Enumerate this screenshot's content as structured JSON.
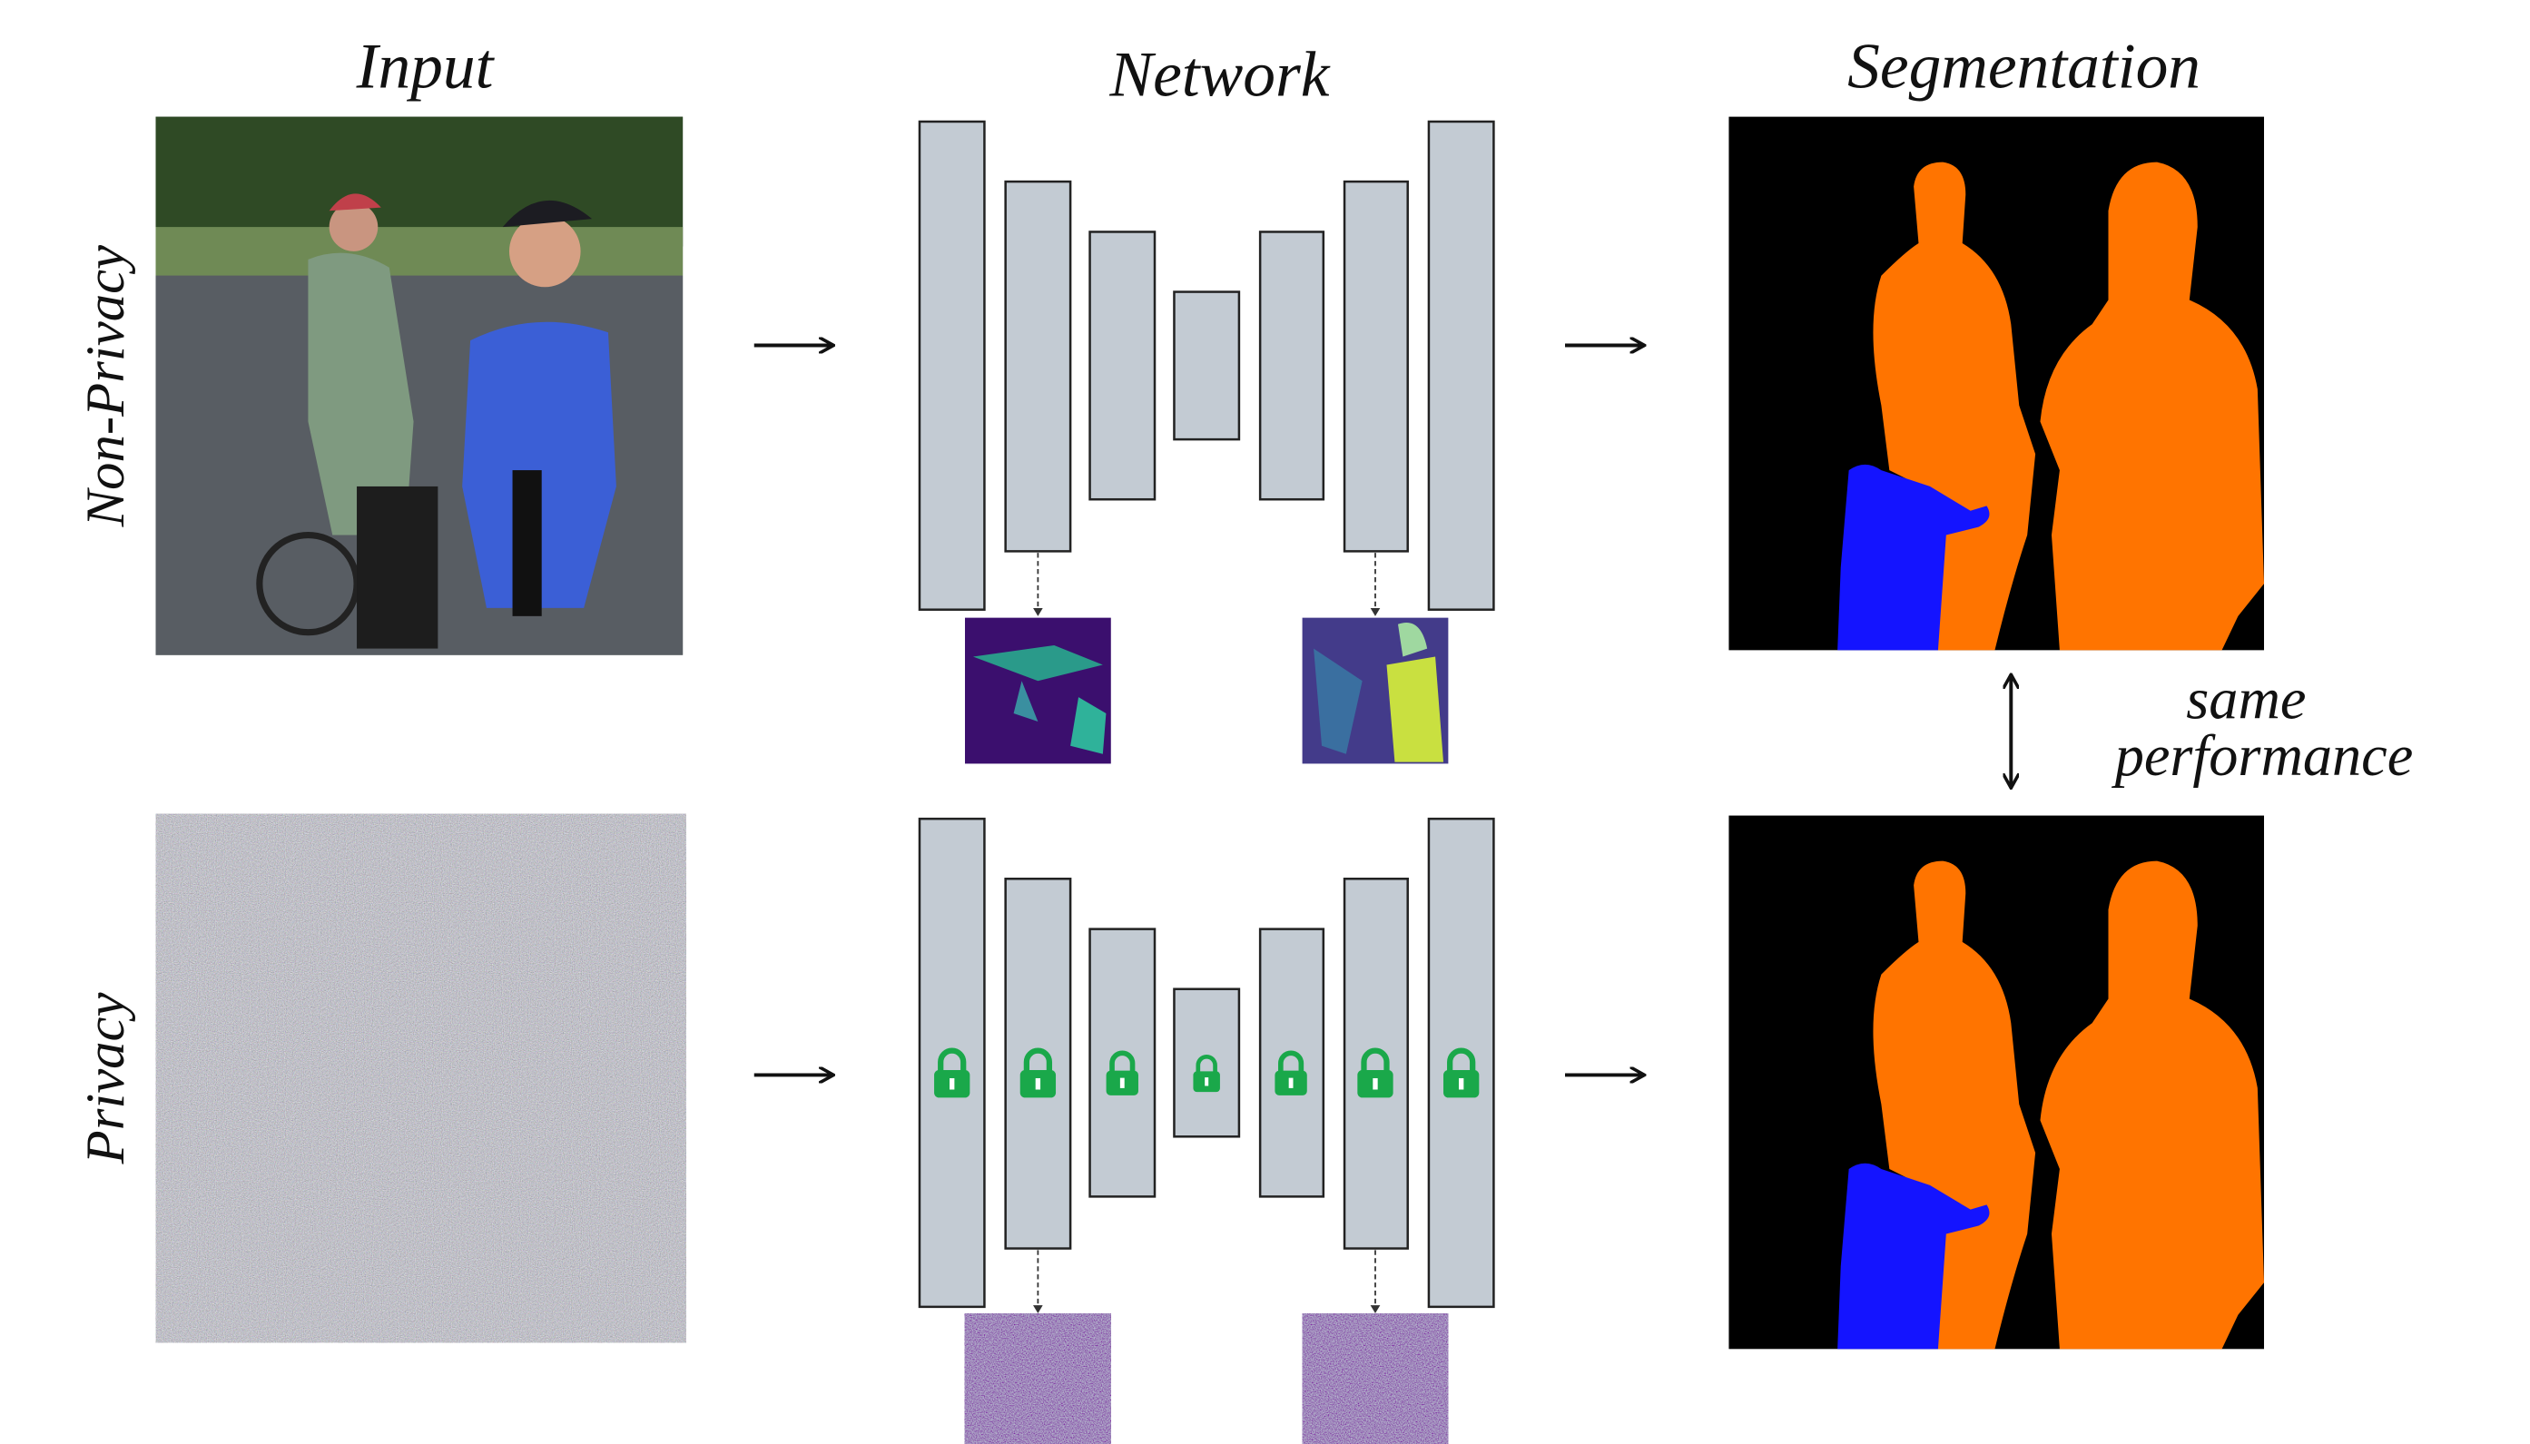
{
  "headers": {
    "input": "Input",
    "network": "Network",
    "segmentation": "Segmentation"
  },
  "rows": {
    "top": "Non-Privacy",
    "bottom": "Privacy"
  },
  "annotation": {
    "line1": "same",
    "line2": "performance"
  }
}
